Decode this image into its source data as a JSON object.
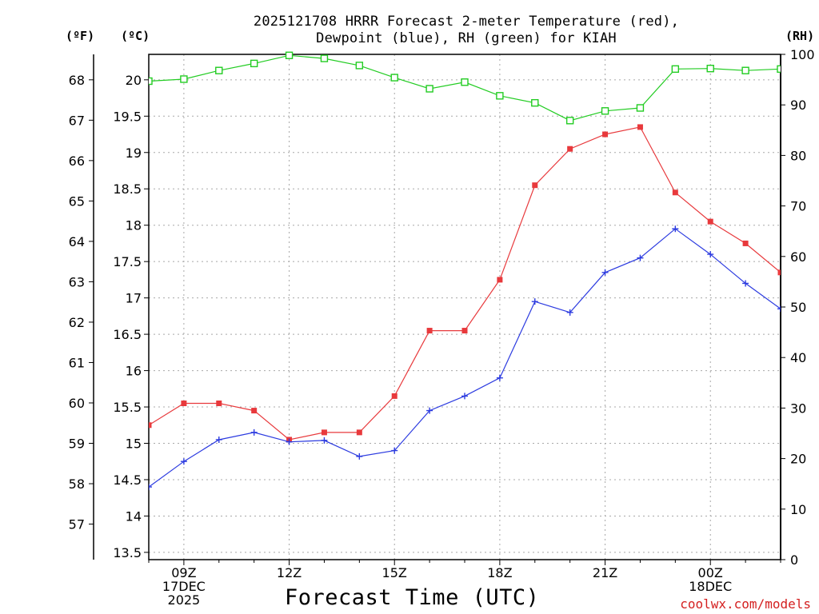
{
  "chart_data": {
    "type": "line",
    "title_line1": "2025121708 HRRR Forecast 2-meter Temperature (red),",
    "title_line2": "Dewpoint (blue), RH (green) for KIAH",
    "xlabel": "Forecast Time (UTC)",
    "unit_left_f": "(ºF)",
    "unit_left_c": "(ºC)",
    "unit_right": "(RH)",
    "credit": "coolwx.com/models",
    "x_hours": [
      8,
      9,
      10,
      11,
      12,
      13,
      14,
      15,
      16,
      17,
      18,
      19,
      20,
      21,
      22,
      23,
      24,
      25,
      26
    ],
    "x_range": [
      8,
      26
    ],
    "x_ticks": [
      {
        "hour": 9,
        "lines": [
          "09Z",
          "17DEC",
          "2025"
        ]
      },
      {
        "hour": 12,
        "lines": [
          "12Z"
        ]
      },
      {
        "hour": 15,
        "lines": [
          "15Z"
        ]
      },
      {
        "hour": 18,
        "lines": [
          "18Z"
        ]
      },
      {
        "hour": 21,
        "lines": [
          "21Z"
        ]
      },
      {
        "hour": 24,
        "lines": [
          "00Z",
          "18DEC"
        ]
      }
    ],
    "celsius_axis": {
      "range": [
        13.4,
        20.35
      ],
      "ticks": [
        "13.5",
        "14",
        "14.5",
        "15",
        "15.5",
        "16",
        "16.5",
        "17",
        "17.5",
        "18",
        "18.5",
        "19",
        "19.5",
        "20"
      ]
    },
    "fahrenheit_ticks": [
      "57",
      "58",
      "59",
      "60",
      "61",
      "62",
      "63",
      "64",
      "65",
      "66",
      "67",
      "68"
    ],
    "rh_axis": {
      "range": [
        0,
        100
      ],
      "ticks": [
        "0",
        "10",
        "20",
        "30",
        "40",
        "50",
        "60",
        "70",
        "80",
        "90",
        "100"
      ]
    },
    "series": [
      {
        "name": "Temperature",
        "axis": "C",
        "color": "#e8393c",
        "marker": "square-filled",
        "values": [
          15.25,
          15.55,
          15.55,
          15.45,
          15.05,
          15.15,
          15.15,
          15.65,
          16.55,
          16.55,
          17.25,
          18.55,
          19.05,
          19.25,
          19.35,
          18.45,
          18.05,
          17.75,
          17.35
        ]
      },
      {
        "name": "Dewpoint",
        "axis": "C",
        "color": "#2c3be0",
        "marker": "plus",
        "values": [
          14.4,
          14.75,
          15.05,
          15.15,
          15.02,
          15.04,
          14.82,
          14.9,
          15.45,
          15.65,
          15.9,
          16.95,
          16.8,
          17.35,
          17.55,
          17.95,
          17.6,
          17.2,
          16.85
        ]
      },
      {
        "name": "RH",
        "axis": "RH",
        "color": "#22cc22",
        "marker": "square-open",
        "values": [
          94.7,
          95.1,
          96.8,
          98.2,
          99.8,
          99.2,
          97.8,
          95.4,
          93.2,
          94.5,
          91.8,
          90.4,
          86.9,
          88.8,
          89.4,
          97.1,
          97.2,
          96.8,
          97.1
        ]
      }
    ]
  }
}
